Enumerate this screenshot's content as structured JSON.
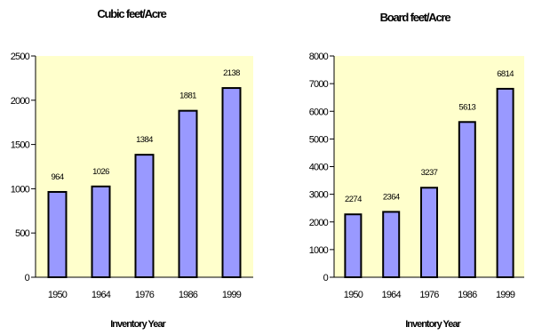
{
  "colors": {
    "plot_background": "#ffffcc",
    "bar_fill": "#9999ff",
    "bar_stroke": "#000000",
    "axis": "#000000",
    "text": "#000000"
  },
  "chart_data": [
    {
      "type": "bar",
      "title": "Cubic feet/Acre",
      "xlabel": "Inventory Year",
      "ylabel": "",
      "categories": [
        "1950",
        "1964",
        "1976",
        "1986",
        "1999"
      ],
      "values": [
        964,
        1026,
        1384,
        1881,
        2138
      ],
      "data_labels": [
        "964",
        "1026",
        "1384",
        "1881",
        "2138"
      ],
      "ylim": [
        0,
        2500
      ],
      "yticks": [
        0,
        500,
        1000,
        1500,
        2000,
        2500
      ],
      "grid": false,
      "legend": "none"
    },
    {
      "type": "bar",
      "title": "Board feet/Acre",
      "xlabel": "Inventory Year",
      "ylabel": "",
      "categories": [
        "1950",
        "1964",
        "1976",
        "1986",
        "1999"
      ],
      "values": [
        2274,
        2364,
        3237,
        5613,
        6814
      ],
      "data_labels": [
        "2274",
        "2364",
        "3237",
        "5613",
        "6814"
      ],
      "ylim": [
        0,
        8000
      ],
      "yticks": [
        0,
        1000,
        2000,
        3000,
        4000,
        5000,
        6000,
        7000,
        8000
      ],
      "grid": false,
      "legend": "none"
    }
  ]
}
